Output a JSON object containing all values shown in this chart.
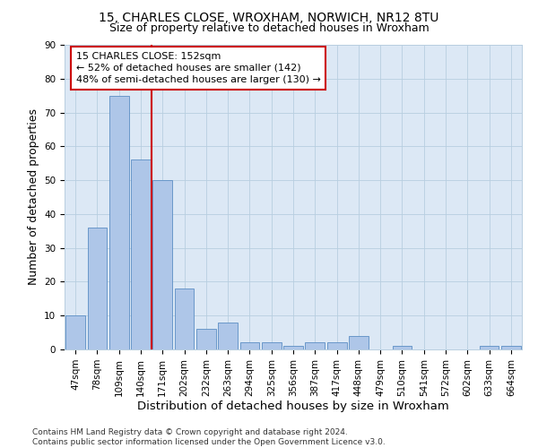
{
  "title_line1": "15, CHARLES CLOSE, WROXHAM, NORWICH, NR12 8TU",
  "title_line2": "Size of property relative to detached houses in Wroxham",
  "xlabel": "Distribution of detached houses by size in Wroxham",
  "ylabel": "Number of detached properties",
  "bar_labels": [
    "47sqm",
    "78sqm",
    "109sqm",
    "140sqm",
    "171sqm",
    "202sqm",
    "232sqm",
    "263sqm",
    "294sqm",
    "325sqm",
    "356sqm",
    "387sqm",
    "417sqm",
    "448sqm",
    "479sqm",
    "510sqm",
    "541sqm",
    "572sqm",
    "602sqm",
    "633sqm",
    "664sqm"
  ],
  "bar_values": [
    10,
    36,
    75,
    56,
    50,
    18,
    6,
    8,
    2,
    2,
    1,
    2,
    2,
    4,
    0,
    1,
    0,
    0,
    0,
    1,
    1
  ],
  "bar_color": "#aec6e8",
  "bar_edge_color": "#5b8ec4",
  "vline_x_index": 3,
  "vline_color": "#cc0000",
  "annotation_line1": "15 CHARLES CLOSE: 152sqm",
  "annotation_line2": "← 52% of detached houses are smaller (142)",
  "annotation_line3": "48% of semi-detached houses are larger (130) →",
  "annotation_box_color": "#ffffff",
  "annotation_box_edge": "#cc0000",
  "ylim": [
    0,
    90
  ],
  "yticks": [
    0,
    10,
    20,
    30,
    40,
    50,
    60,
    70,
    80,
    90
  ],
  "plot_bg_color": "#dce8f5",
  "footer": "Contains HM Land Registry data © Crown copyright and database right 2024.\nContains public sector information licensed under the Open Government Licence v3.0.",
  "title_fontsize": 10,
  "subtitle_fontsize": 9,
  "axis_label_fontsize": 9,
  "tick_fontsize": 7.5,
  "annotation_fontsize": 8,
  "footer_fontsize": 6.5
}
